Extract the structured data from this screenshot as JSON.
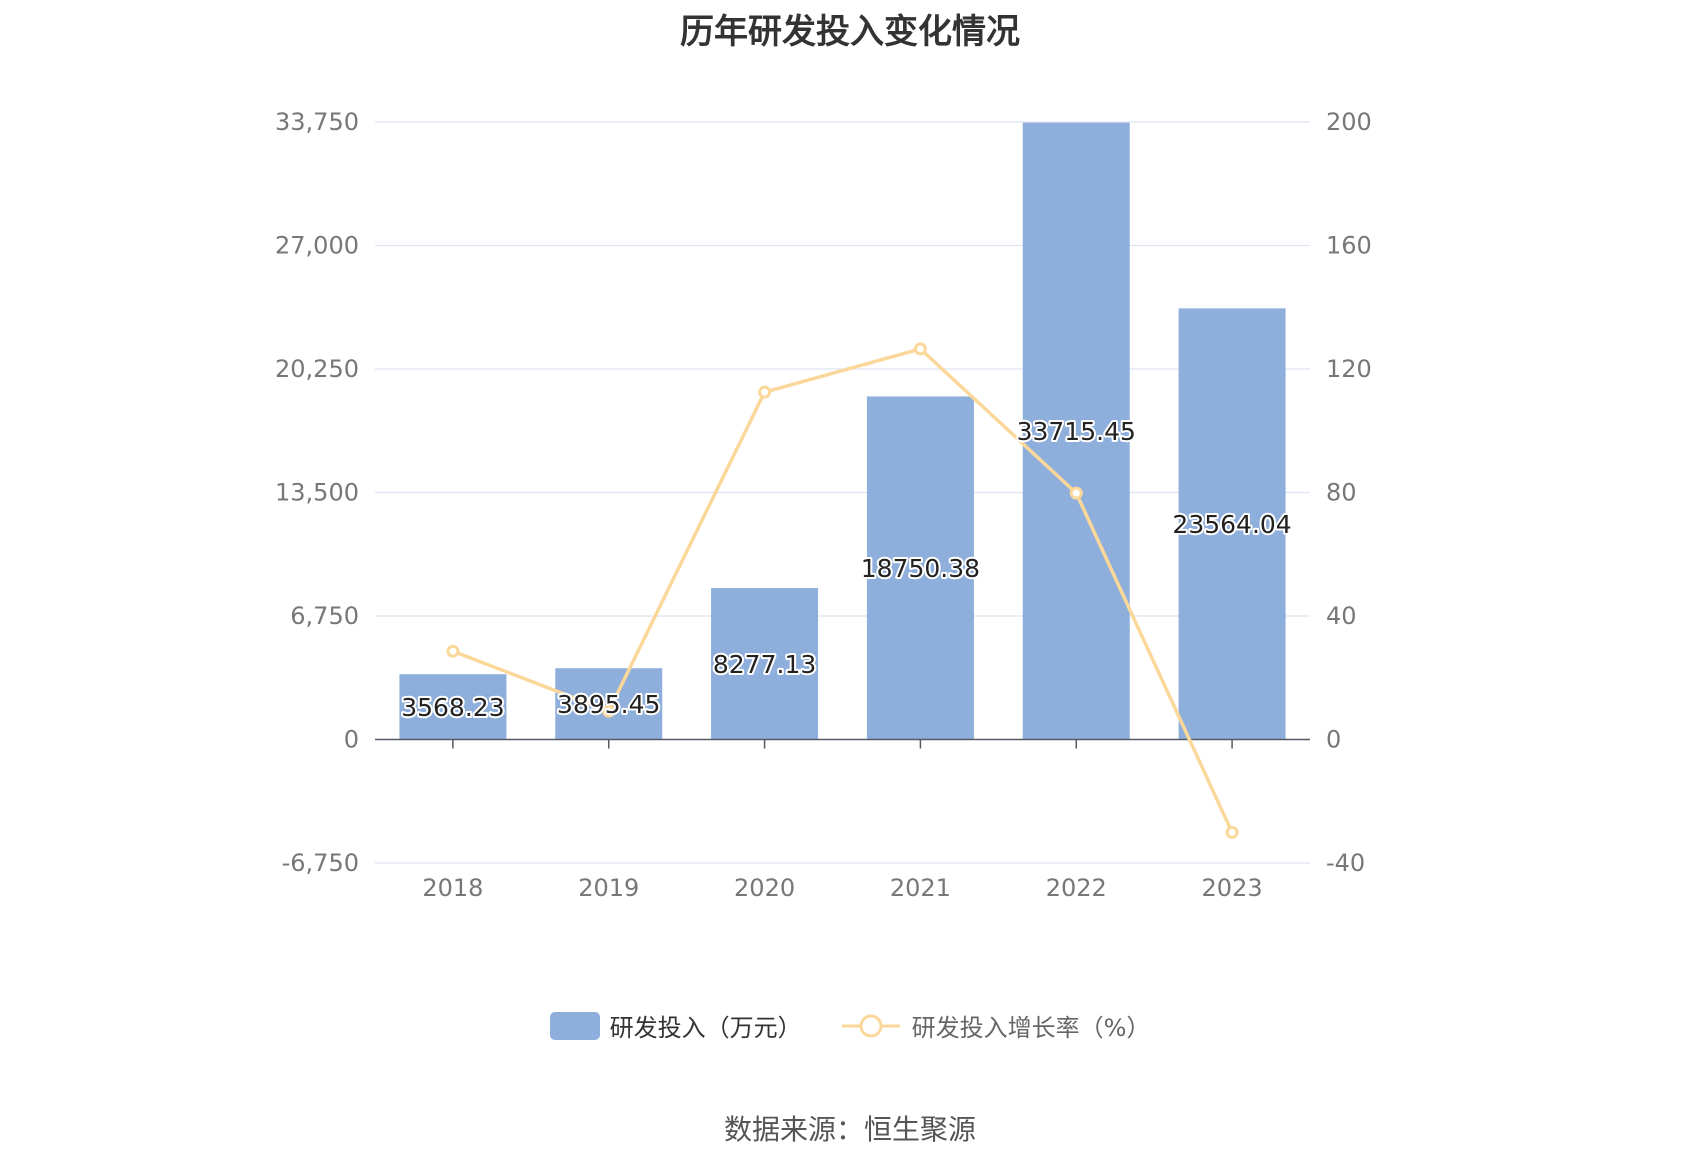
{
  "chart_data": {
    "type": "bar",
    "title": "历年研发投入变化情况",
    "categories": [
      "2018",
      "2019",
      "2020",
      "2021",
      "2022",
      "2023"
    ],
    "series": [
      {
        "name": "研发投入（万元）",
        "type": "bar",
        "axis": "left",
        "color": "#8eaedb",
        "values": [
          3568.23,
          3895.45,
          8277.13,
          18750.38,
          33715.45,
          23564.04
        ],
        "data_labels": [
          "3568.23",
          "3895.45",
          "8277.13",
          "18750.38",
          "33715.45",
          "23564.04"
        ]
      },
      {
        "name": "研发投入增长率（%）",
        "type": "line",
        "axis": "right",
        "color": "#fbd89a",
        "values": [
          28.6,
          9.2,
          112.5,
          126.5,
          79.8,
          -30.1
        ]
      }
    ],
    "y_left": {
      "ticks": [
        "33,750",
        "27,000",
        "20,250",
        "13,500",
        "6,750",
        "0",
        "-6,750"
      ],
      "ylim": [
        -6750,
        33750
      ]
    },
    "y_right": {
      "ticks": [
        "200",
        "160",
        "120",
        "80",
        "40",
        "0",
        "-40"
      ],
      "ylim": [
        -40,
        200
      ]
    },
    "grid": true,
    "legend_position": "bottom-center"
  },
  "source_text": "数据来源：恒生聚源"
}
